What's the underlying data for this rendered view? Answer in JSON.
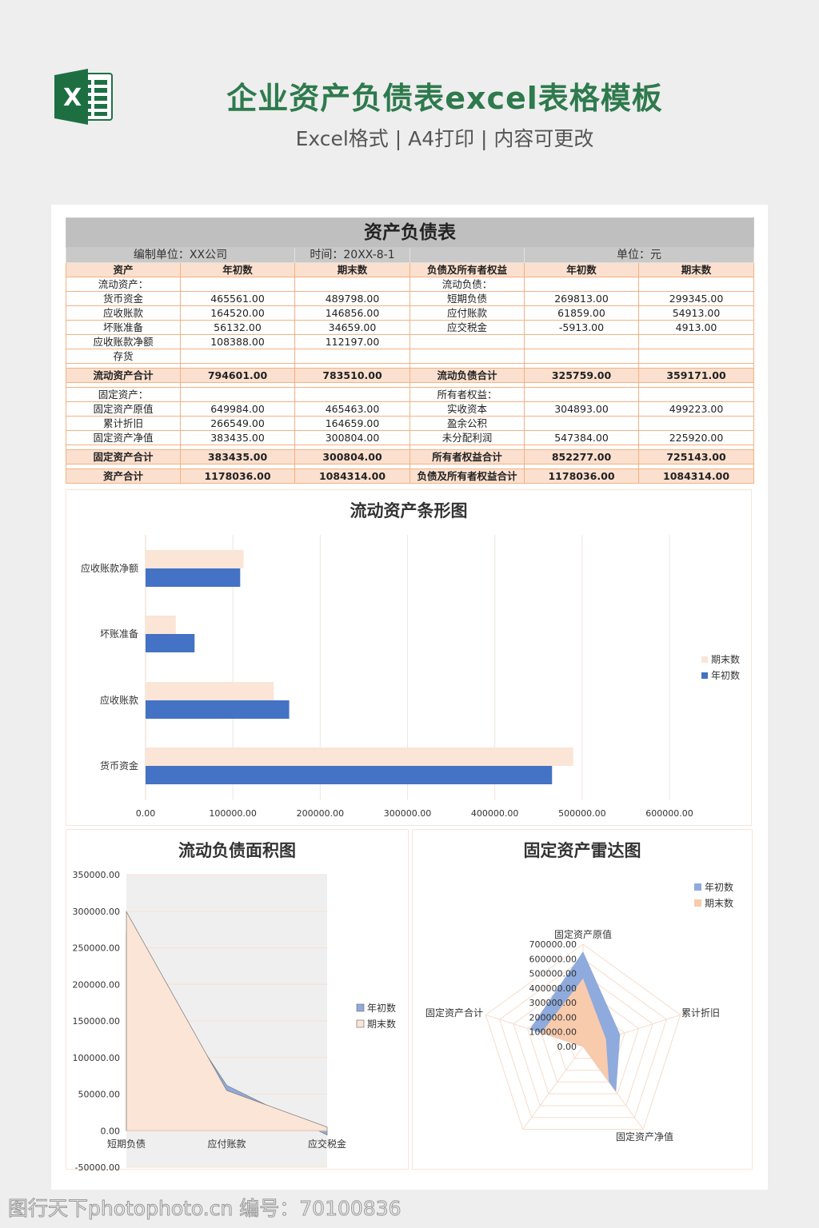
{
  "header": {
    "title": "企业资产负债表excel表格模板",
    "subtitle": "Excel格式 | A4打印 | 内容可更改",
    "logo_icon": "excel-logo-icon",
    "logo_letter": "X"
  },
  "sheet": {
    "title": "资产负债表",
    "company": "编制单位：XX公司",
    "date": "时间：20XX-8-1",
    "unit": "单位：元",
    "columns": [
      "资产",
      "年初数",
      "期末数",
      "负债及所有者权益",
      "年初数",
      "期末数"
    ],
    "rows": [
      {
        "type": "norm",
        "cells": [
          "流动资产：",
          "",
          "",
          "流动负债：",
          "",
          ""
        ]
      },
      {
        "type": "norm",
        "cells": [
          "货币资金",
          "465561.00",
          "489798.00",
          "短期负债",
          "269813.00",
          "299345.00"
        ]
      },
      {
        "type": "norm",
        "cells": [
          "应收账款",
          "164520.00",
          "146856.00",
          "应付账款",
          "61859.00",
          "54913.00"
        ]
      },
      {
        "type": "norm",
        "cells": [
          "坏账准备",
          "56132.00",
          "34659.00",
          "应交税金",
          "-5913.00",
          "4913.00"
        ]
      },
      {
        "type": "norm",
        "cells": [
          "应收账款净额",
          "108388.00",
          "112197.00",
          "",
          "",
          ""
        ]
      },
      {
        "type": "norm",
        "cells": [
          "存货",
          "",
          "",
          "",
          "",
          ""
        ]
      },
      {
        "type": "total",
        "cells": [
          "流动资产合计",
          "794601.00",
          "783510.00",
          "流动负债合计",
          "325759.00",
          "359171.00"
        ]
      },
      {
        "type": "norm",
        "cells": [
          "固定资产：",
          "",
          "",
          "所有者权益：",
          "",
          ""
        ]
      },
      {
        "type": "norm",
        "cells": [
          "固定资产原值",
          "649984.00",
          "465463.00",
          "实收资本",
          "304893.00",
          "499223.00"
        ]
      },
      {
        "type": "norm",
        "cells": [
          "累计折旧",
          "266549.00",
          "164659.00",
          "盈余公积",
          "",
          ""
        ]
      },
      {
        "type": "norm",
        "cells": [
          "固定资产净值",
          "383435.00",
          "300804.00",
          "未分配利润",
          "547384.00",
          "225920.00"
        ]
      },
      {
        "type": "total",
        "cells": [
          "固定资产合计",
          "383435.00",
          "300804.00",
          "所有者权益合计",
          "852277.00",
          "725143.00"
        ]
      },
      {
        "type": "total",
        "cells": [
          "资产合计",
          "1178036.00",
          "1084314.00",
          "负债及所有者权益合计",
          "1178036.00",
          "1084314.00"
        ]
      }
    ]
  },
  "chart_data": [
    {
      "type": "bar",
      "orientation": "horizontal",
      "title": "流动资产条形图",
      "categories": [
        "应收账款净额",
        "坏账准备",
        "应收账款",
        "货币资金"
      ],
      "series": [
        {
          "name": "期末数",
          "values": [
            112197,
            34659,
            146856,
            489798
          ],
          "color": "#fbe5d6"
        },
        {
          "name": "年初数",
          "values": [
            108388,
            56132,
            164520,
            465561
          ],
          "color": "#4472c4"
        }
      ],
      "xlim": [
        0,
        600000
      ],
      "ticks": [
        "0.00",
        "100000.00",
        "200000.00",
        "300000.00",
        "400000.00",
        "500000.00",
        "600000.00"
      ],
      "grid": true,
      "legend": "right"
    },
    {
      "type": "area",
      "title": "流动负债面积图",
      "categories": [
        "短期负债",
        "应付账款",
        "应交税金"
      ],
      "series": [
        {
          "name": "年初数",
          "values": [
            269813,
            61859,
            -5913
          ],
          "color": "#8faadc"
        },
        {
          "name": "期末数",
          "values": [
            299345,
            54913,
            4913
          ],
          "color": "#fbe5d6"
        }
      ],
      "ylim": [
        -50000,
        350000
      ],
      "ticks": [
        "-50000.00",
        "0.00",
        "50000.00",
        "100000.00",
        "150000.00",
        "200000.00",
        "250000.00",
        "300000.00",
        "350000.00"
      ],
      "grid": true,
      "legend": "right"
    },
    {
      "type": "radar",
      "title": "固定资产雷达图",
      "categories": [
        "固定资产原值",
        "累计折旧",
        "固定资产净值",
        "",
        "固定资产合计"
      ],
      "series": [
        {
          "name": "年初数",
          "values": [
            649984,
            266549,
            383435,
            0,
            383435
          ],
          "color": "#8faadc"
        },
        {
          "name": "期末数",
          "values": [
            465463,
            164659,
            300804,
            0,
            300804
          ],
          "color": "#f8cbad"
        }
      ],
      "rlim": [
        0,
        700000
      ],
      "ticks": [
        "0.00",
        "100000.00",
        "200000.00",
        "300000.00",
        "400000.00",
        "500000.00",
        "600000.00",
        "700000.00"
      ],
      "legend": "top-right"
    }
  ],
  "watermark": "图行天下photophoto.cn 编号：70100836"
}
